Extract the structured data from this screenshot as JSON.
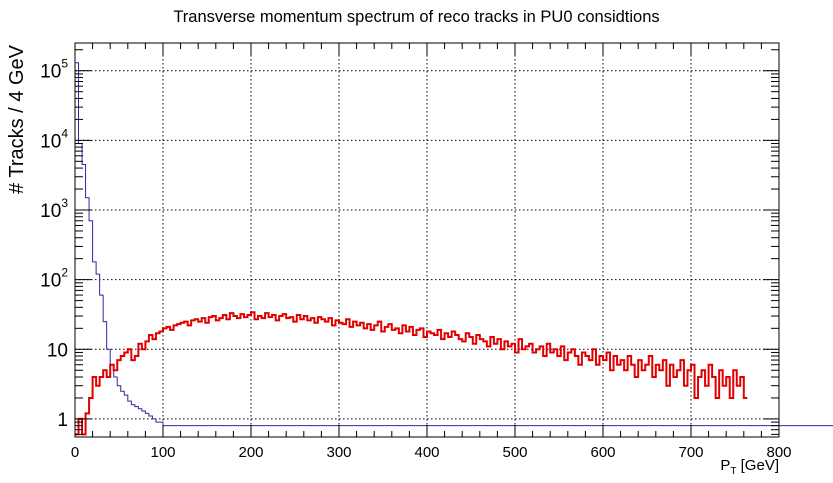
{
  "chart_data": {
    "type": "line",
    "title": "Transverse momentum spectrum of reco tracks in PU0 considtions",
    "xlabel": "P",
    "xlabel_sub": "T",
    "xlabel_unit": " [GeV]",
    "ylabel": "# Tracks / 4 GeV",
    "xlim": [
      0,
      800
    ],
    "ylim": [
      0.55,
      250000
    ],
    "yscale": "log",
    "grid": true,
    "x_ticks": [
      0,
      100,
      200,
      300,
      400,
      500,
      600,
      700,
      800
    ],
    "y_ticks": [
      {
        "value": 1,
        "base": "1",
        "exp": ""
      },
      {
        "value": 10,
        "base": "10",
        "exp": ""
      },
      {
        "value": 100,
        "base": "10",
        "exp": "2"
      },
      {
        "value": 1000,
        "base": "10",
        "exp": "3"
      },
      {
        "value": 10000,
        "base": "10",
        "exp": "4"
      },
      {
        "value": 100000,
        "base": "10",
        "exp": "5"
      }
    ],
    "bin_width": 4,
    "series": [
      {
        "color": "#2a2a9e",
        "values": [
          130000,
          9000,
          4500,
          1500,
          700,
          180,
          120,
          60,
          25,
          10,
          6,
          4,
          3,
          2.5,
          2.2,
          1.8,
          1.6,
          1.5,
          1.4,
          1.3,
          1.2,
          1.1,
          1,
          0.9,
          0.9,
          0.8,
          0.8,
          0.8,
          0.8,
          0.8,
          0.8,
          0.8,
          0.8,
          0.8,
          0.8,
          0.8,
          0.8,
          0.8,
          0.8,
          0.8,
          0.8,
          0.8,
          0.8,
          0.8,
          0.8,
          0.8,
          0.8,
          0.8,
          0.8,
          0.8,
          0.8,
          0.8,
          0.8,
          0.8,
          0.8,
          0.8,
          0.8,
          0.8,
          0.8,
          0.8,
          0.8,
          0.8,
          0.8,
          0.8,
          0.8,
          0.8,
          0.8,
          0.8,
          0.8,
          0.8,
          0.8,
          0.8,
          0.8,
          0.8,
          0.8,
          0.8,
          0.8,
          0.8,
          0.8,
          0.8,
          0.8,
          0.8,
          0.8,
          0.8,
          0.8,
          0.8,
          0.8,
          0.8,
          0.8,
          0.8,
          0.8,
          0.8,
          0.8,
          0.8,
          0.8,
          0.8,
          0.8,
          0.8,
          0.8,
          0.8,
          0.8,
          0.8,
          0.8,
          0.8,
          0.8,
          0.8,
          0.8,
          0.8,
          0.8,
          0.8,
          0.8,
          0.8,
          0.8,
          0.8,
          0.8,
          0.8,
          0.8,
          0.8,
          0.8,
          0.8,
          0.8,
          0.8,
          0.8,
          0.8,
          0.8,
          0.8,
          0.8,
          0.8,
          0.8,
          0.8,
          0.8,
          0.8,
          0.8,
          0.8,
          0.8,
          0.8,
          0.8,
          0.8,
          0.8,
          0.8,
          0.8,
          0.8,
          0.8,
          0.8,
          0.8,
          0.8,
          0.8,
          0.8,
          0.8,
          0.8,
          0.8,
          0.8,
          0.8,
          0.8,
          0.8,
          0.8,
          0.8,
          0.8,
          0.8,
          0.8,
          0.8,
          0.8,
          0.8,
          0.8,
          0.8,
          0.8,
          0.8,
          0.8,
          0.8,
          0.8,
          0.8,
          0.8,
          0.8,
          0.8,
          0.8,
          0.8,
          0.8,
          0.8,
          0.8,
          0.8,
          0.8,
          0.8,
          0.8,
          0.8,
          0.8,
          0.8,
          0.8,
          0.8,
          0.8,
          0.8,
          0.8,
          0.8,
          0.8,
          0.8,
          0.8,
          0.8,
          0.8,
          0.8,
          0.8,
          0.8,
          0.8,
          0.8,
          0.8,
          0.8,
          0.8,
          0.8,
          0.8,
          0.8,
          0.8,
          0.8,
          0.8,
          0.8,
          0.8,
          0.8,
          0.8,
          0.8,
          0.8,
          0.8
        ]
      },
      {
        "color": "#e00000",
        "values": [
          0.6,
          1,
          0.6,
          1.2,
          2,
          4,
          3,
          4,
          5,
          4,
          6,
          5,
          7,
          8,
          9,
          10,
          7,
          8,
          12,
          10,
          13,
          16,
          14,
          17,
          18,
          20,
          21,
          19,
          22,
          23,
          24,
          25,
          22,
          26,
          27,
          25,
          28,
          24,
          29,
          30,
          26,
          28,
          31,
          27,
          33,
          30,
          28,
          32,
          29,
          31,
          34,
          27,
          30,
          28,
          33,
          29,
          31,
          26,
          30,
          32,
          28,
          29,
          25,
          31,
          27,
          30,
          26,
          28,
          24,
          29,
          27,
          25,
          28,
          22,
          26,
          24,
          23,
          27,
          21,
          25,
          22,
          24,
          20,
          23,
          19,
          22,
          25,
          18,
          21,
          23,
          19,
          20,
          17,
          22,
          18,
          21,
          16,
          19,
          20,
          15,
          18,
          17,
          16,
          19,
          14,
          17,
          15,
          18,
          16,
          14,
          13,
          17,
          15,
          12,
          16,
          14,
          13,
          11,
          15,
          12,
          14,
          10,
          13,
          11,
          12,
          9,
          14,
          10,
          11,
          12,
          9,
          10,
          11,
          8,
          12,
          9,
          10,
          8,
          11,
          7,
          9,
          10,
          8,
          6,
          9,
          8,
          7,
          10,
          6,
          8,
          7,
          9,
          5,
          8,
          6,
          7,
          5,
          8,
          6,
          4,
          7,
          5,
          6,
          8,
          4,
          6,
          5,
          7,
          3,
          6,
          4,
          5,
          7,
          3,
          5,
          6,
          2,
          4,
          5,
          3,
          6,
          4,
          2,
          5,
          3,
          4,
          2,
          5,
          3,
          4,
          2
        ]
      }
    ]
  }
}
